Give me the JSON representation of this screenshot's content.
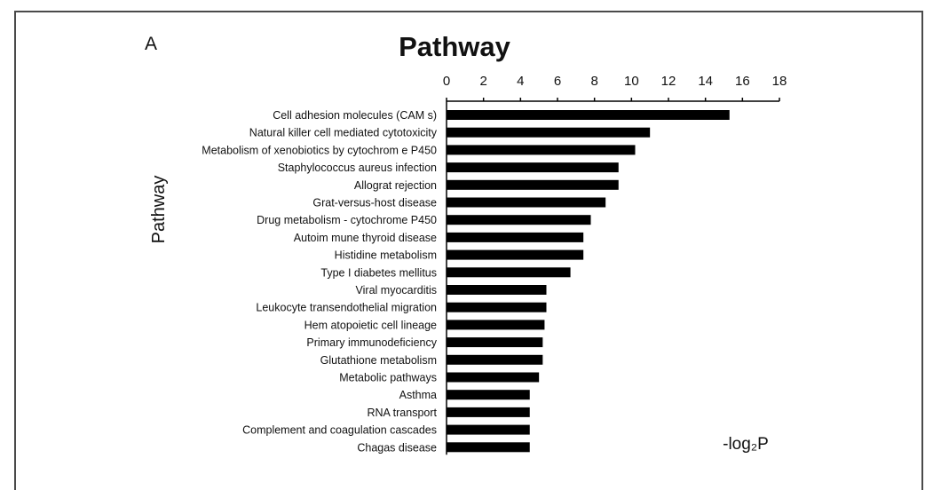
{
  "panel_label": "A",
  "chart_data": {
    "type": "bar",
    "orientation": "horizontal",
    "title": "Pathway",
    "ylabel": "Pathway",
    "xlabel": "-log₂P",
    "xlim": [
      0,
      18
    ],
    "xticks": [
      "0",
      "2",
      "4",
      "6",
      "8",
      "10",
      "12",
      "14",
      "16",
      "18"
    ],
    "x_axis_position": "top",
    "grid": false,
    "categories": [
      "Cell adhesion molecules (CAM s)",
      "Natural killer cell mediated cytotoxicity",
      "Metabolism of xenobiotics by cytochrom e P450",
      "Staphylococcus aureus infection",
      "Allograt rejection",
      "Grat-versus-host disease",
      "Drug metabolism - cytochrome P450",
      "Autoim mune thyroid disease",
      "Histidine metabolism",
      "Type I diabetes mellitus",
      "Viral myocarditis",
      "Leukocyte transendothelial migration",
      "Hem atopoietic cell lineage",
      "Primary immunodeficiency",
      "Glutathione metabolism",
      "Metabolic pathways",
      "Asthma",
      "RNA transport",
      "Complement and coagulation cascades",
      "Chagas disease"
    ],
    "values": [
      15.3,
      11.0,
      10.2,
      9.3,
      9.3,
      8.6,
      7.8,
      7.4,
      7.4,
      6.7,
      5.4,
      5.4,
      5.3,
      5.2,
      5.2,
      5.0,
      4.5,
      4.5,
      4.5,
      4.5
    ]
  }
}
